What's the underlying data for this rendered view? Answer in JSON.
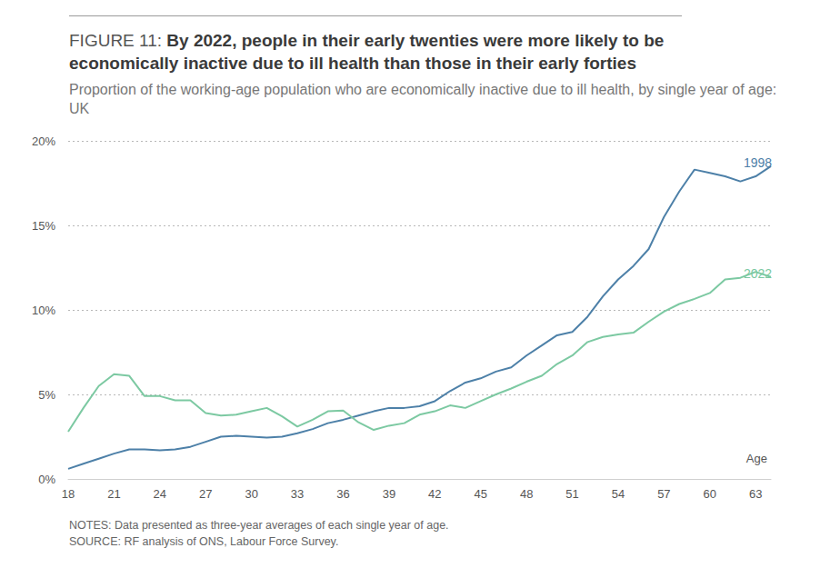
{
  "chart_data": {
    "type": "line",
    "title": "FIGURE 11: By 2022, people in their early twenties were more likely to be economically inactive due to ill health than those in their early forties",
    "subtitle": "Proportion of the working-age population who are economically inactive due to ill health, by single year of age: UK",
    "x_label": "Age",
    "notes": [
      "NOTES: Data presented as three-year averages of each single year of age.",
      "SOURCE: RF analysis of ONS, Labour Force Survey."
    ],
    "x": [
      18,
      19,
      20,
      21,
      22,
      23,
      24,
      25,
      26,
      27,
      28,
      29,
      30,
      31,
      32,
      33,
      34,
      35,
      36,
      37,
      38,
      39,
      40,
      41,
      42,
      43,
      44,
      45,
      46,
      47,
      48,
      49,
      50,
      51,
      52,
      53,
      54,
      55,
      56,
      57,
      58,
      59,
      60,
      61,
      62,
      63,
      64
    ],
    "series": [
      {
        "name": "1998",
        "color": "#4d80a8",
        "values": [
          0.6,
          0.9,
          1.2,
          1.5,
          1.75,
          1.75,
          1.7,
          1.75,
          1.9,
          2.2,
          2.5,
          2.55,
          2.5,
          2.45,
          2.5,
          2.7,
          2.95,
          3.3,
          3.5,
          3.75,
          4.0,
          4.2,
          4.2,
          4.3,
          4.6,
          5.2,
          5.7,
          5.95,
          6.35,
          6.6,
          7.3,
          7.9,
          8.5,
          8.7,
          9.6,
          10.8,
          11.8,
          12.6,
          13.6,
          15.5,
          17.0,
          18.3,
          18.1,
          17.9,
          17.6,
          17.9,
          18.5
        ]
      },
      {
        "name": "2022",
        "color": "#7cc9a2",
        "values": [
          2.8,
          4.2,
          5.5,
          6.2,
          6.1,
          4.9,
          4.9,
          4.65,
          4.65,
          3.9,
          3.75,
          3.8,
          4.0,
          4.2,
          3.7,
          3.1,
          3.5,
          4.0,
          4.05,
          3.35,
          2.9,
          3.15,
          3.3,
          3.8,
          4.0,
          4.35,
          4.2,
          4.6,
          5.0,
          5.35,
          5.75,
          6.1,
          6.8,
          7.3,
          8.1,
          8.4,
          8.55,
          8.65,
          9.3,
          9.9,
          10.35,
          10.65,
          11.0,
          11.8,
          11.9,
          12.25,
          11.95
        ]
      }
    ],
    "xlim": [
      18,
      64
    ],
    "xticks": [
      18,
      21,
      24,
      27,
      30,
      33,
      36,
      39,
      42,
      45,
      48,
      51,
      54,
      57,
      60,
      63
    ],
    "ylim": [
      0,
      20
    ],
    "yticks": [
      {
        "value": 0,
        "label": "0%"
      },
      {
        "value": 5,
        "label": "5%"
      },
      {
        "value": 10,
        "label": "10%"
      },
      {
        "value": 15,
        "label": "15%"
      },
      {
        "value": 20,
        "label": "20%"
      }
    ],
    "grid": true
  }
}
